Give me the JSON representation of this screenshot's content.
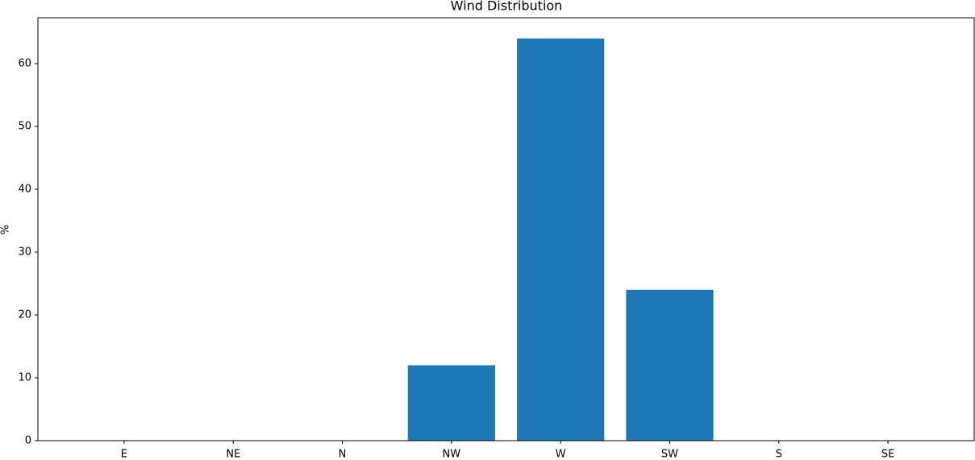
{
  "chart_data": {
    "type": "bar",
    "title": "Wind Distribution",
    "y_label": "%",
    "categories": [
      "E",
      "NE",
      "N",
      "NW",
      "W",
      "SW",
      "S",
      "SE"
    ],
    "values": [
      0,
      0,
      0,
      12,
      64,
      24,
      0,
      0
    ],
    "color": "#1f77b4",
    "ylim": [
      0,
      67.3
    ],
    "yticks": [
      0,
      10,
      20,
      30,
      40,
      50,
      60
    ],
    "grid": false
  }
}
